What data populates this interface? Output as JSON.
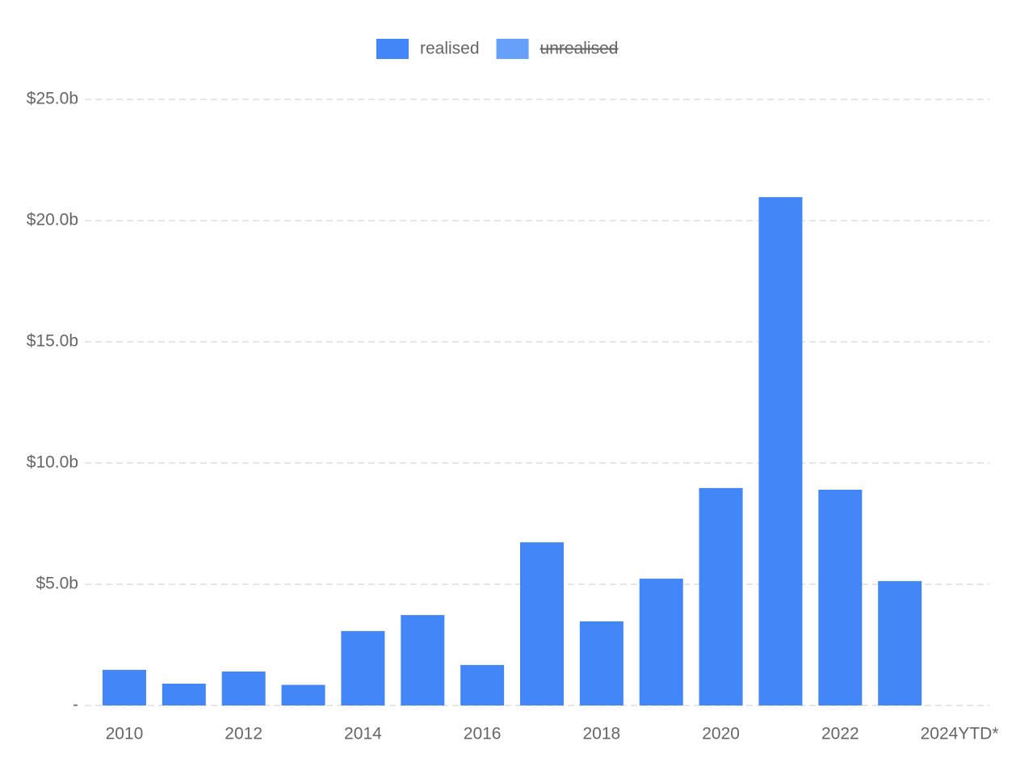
{
  "chart_data": {
    "type": "stacked_bar",
    "categories": [
      "2010",
      null,
      "2012",
      null,
      "2014",
      null,
      "2016",
      null,
      "2018",
      null,
      "2020",
      null,
      "2022",
      null,
      "2024YTD*"
    ],
    "series": [
      {
        "name": "realised",
        "color": "#4286f8",
        "values": [
          1.47,
          0.9,
          1.4,
          0.85,
          3.07,
          3.73,
          1.67,
          6.73,
          3.47,
          5.23,
          8.97,
          20.97,
          8.9,
          5.13,
          0
        ]
      },
      {
        "name": "unrealised",
        "color": "#66a0fa",
        "hidden": true,
        "values": [
          null,
          null,
          null,
          null,
          null,
          null,
          null,
          null,
          null,
          null,
          null,
          null,
          null,
          null,
          null
        ]
      }
    ],
    "ylim": [
      0,
      25
    ],
    "yticks": [
      {
        "value": 0,
        "label": "-"
      },
      {
        "value": 5,
        "label": "$5.0b"
      },
      {
        "value": 10,
        "label": "$10.0b"
      },
      {
        "value": 15,
        "label": "$15.0b"
      },
      {
        "value": 20,
        "label": "$20.0b"
      },
      {
        "value": 25,
        "label": "$25.0b"
      }
    ],
    "grid": true,
    "legend": "top"
  }
}
